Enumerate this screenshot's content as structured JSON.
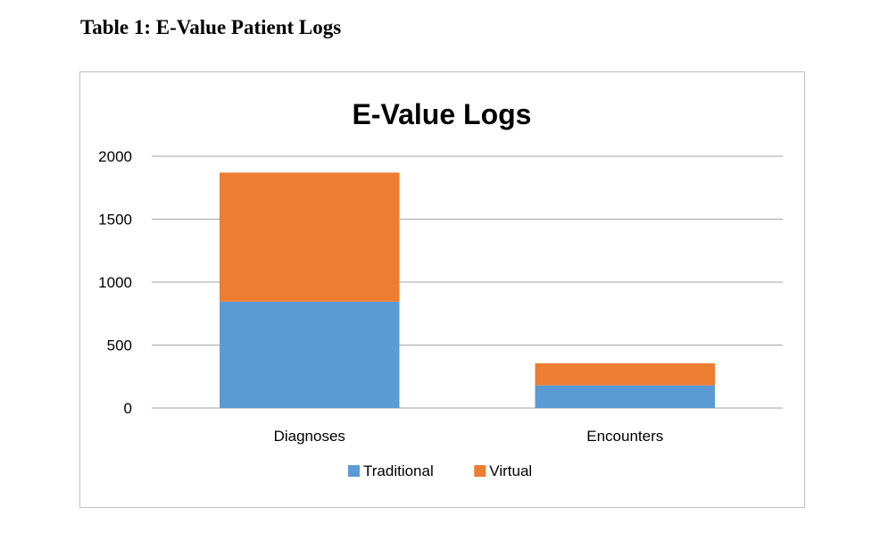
{
  "page": {
    "heading": "Table 1: E-Value Patient Logs"
  },
  "chart_data": {
    "type": "bar",
    "stacked": true,
    "title": "E-Value Logs",
    "xlabel": "",
    "ylabel": "",
    "categories": [
      "Diagnoses",
      "Encounters"
    ],
    "series": [
      {
        "name": "Traditional",
        "color": "#5b9bd5",
        "values": [
          845,
          180
        ]
      },
      {
        "name": "Virtual",
        "color": "#ed7d31",
        "values": [
          1025,
          175
        ]
      }
    ],
    "ylim": [
      0,
      2000
    ],
    "yticks": [
      0,
      500,
      1000,
      1500,
      2000
    ],
    "grid": true,
    "legend": "bottom"
  }
}
